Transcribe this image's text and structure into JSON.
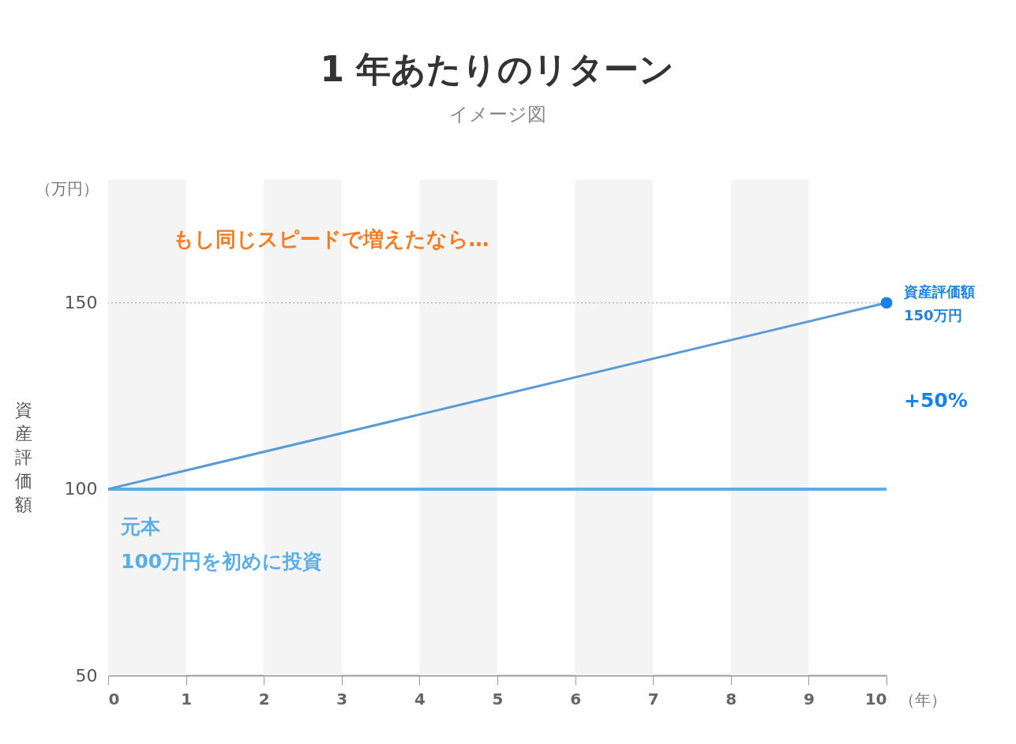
{
  "chart_data": {
    "type": "line",
    "title": "1 年あたりのリターン",
    "subtitle": "イメージ図",
    "ylabel": "資産評価額",
    "xlabel": "（年）",
    "x": [
      0,
      10
    ],
    "series": [
      {
        "color": "#5b9bd5",
        "values": [
          100,
          150
        ]
      }
    ],
    "xlim": [
      0,
      10
    ],
    "xticks": [
      0,
      1,
      2,
      3,
      4,
      5,
      6,
      7,
      8,
      9,
      10
    ],
    "ylim": [
      50,
      183
    ],
    "yticks": [
      50,
      100,
      150
    ],
    "grid": false,
    "line_style": "solid",
    "ref_lines": [
      {
        "axis": "y",
        "value": 100,
        "color": "#5aaee8",
        "line_style": "solid"
      },
      {
        "axis": "y",
        "value": 150,
        "color": "#aaaaaa",
        "line_style": "dotted"
      }
    ],
    "bands": [
      {
        "axis": "x",
        "from": 0,
        "to": 1,
        "color": "#f4f4f4"
      },
      {
        "axis": "x",
        "from": 2,
        "to": 3,
        "color": "#f4f4f4"
      },
      {
        "axis": "x",
        "from": 4,
        "to": 5,
        "color": "#f4f4f4"
      },
      {
        "axis": "x",
        "from": 6,
        "to": 7,
        "color": "#f4f4f4"
      },
      {
        "axis": "x",
        "from": 8,
        "to": 9,
        "color": "#f4f4f4"
      }
    ],
    "annotations": [
      "（万円）",
      "もし同じスピードで増えたなら…",
      "元本",
      "100万円を初めに投資",
      "+50%",
      {
        "text": "資産評価額 150万円",
        "x": 10,
        "y": 150
      }
    ]
  }
}
